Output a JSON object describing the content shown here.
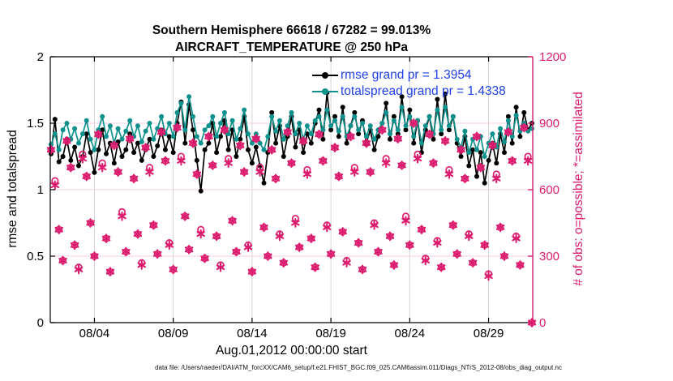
{
  "title": {
    "line1": "Southern Hemisphere 66618 / 67282 = 99.013%",
    "line2": "AIRCRAFT_TEMPERATURE @ 250 hPa"
  },
  "legend": [
    {
      "label": "rmse grand pr = 1.3954",
      "color": "#000000"
    },
    {
      "label": "totalspread grand pr = 1.4338",
      "color": "#0d918c"
    }
  ],
  "legend_text_color": "#1f3fe8",
  "footer": {
    "data_file": "data file: /Users/raeder/DAI/ATM_forcXX/CAM6_setup/f.e21.FHIST_BGC.f09_025.CAM6assim.011/Diags_NTrS_2012-08/obs_diag_output.nc"
  },
  "chart_data": {
    "type": "line",
    "title": "Southern Hemisphere 66618 / 67282 = 99.013% | AIRCRAFT_TEMPERATURE @ 250 hPa",
    "x_label": "Aug.01,2012 00:00:00 start",
    "grid": true,
    "x_range_days": [
      0.2,
      30.8
    ],
    "x_ticks": {
      "days": [
        3,
        8,
        13,
        18,
        23,
        28
      ],
      "labels": [
        "08/04",
        "08/09",
        "08/14",
        "08/19",
        "08/24",
        "08/29"
      ]
    },
    "left_axis": {
      "label": "rmse and totalspread",
      "range": [
        0,
        2
      ],
      "ticks": [
        0,
        0.5,
        1,
        1.5,
        2
      ],
      "tick_labels": [
        "0",
        "0.5",
        "1",
        "1.5",
        "2"
      ],
      "color": "#000000"
    },
    "right_axis": {
      "label": "# of obs: o=possible; *=assimilated",
      "range": [
        0,
        1200
      ],
      "ticks": [
        0,
        300,
        600,
        900,
        1200
      ],
      "tick_labels": [
        "0",
        "300",
        "600",
        "900",
        "1200"
      ],
      "color": "#dc1c6e"
    },
    "grid_color_vertical": "#d4d4d4",
    "grid_color_horizontal": "#f6cfe0",
    "t_start_days": 0.25,
    "t_step_days": 0.25,
    "n_points": 123,
    "series": [
      {
        "name": "rmse",
        "axis": "left",
        "color": "#000000",
        "marker": "dot",
        "grand_pr": 1.3954,
        "values": [
          1.27,
          1.53,
          1.21,
          1.25,
          1.38,
          1.22,
          1.32,
          1.18,
          1.25,
          1.42,
          1.28,
          1.13,
          1.3,
          1.45,
          1.27,
          1.35,
          1.2,
          1.36,
          1.25,
          1.3,
          1.42,
          1.28,
          1.35,
          1.22,
          1.3,
          1.38,
          1.25,
          1.33,
          1.45,
          1.3,
          1.4,
          1.28,
          1.5,
          1.66,
          1.35,
          1.64,
          1.45,
          1.22,
          0.99,
          1.3,
          1.35,
          1.5,
          1.28,
          1.4,
          1.52,
          1.3,
          1.45,
          1.25,
          1.38,
          1.55,
          1.3,
          1.2,
          1.32,
          1.18,
          1.05,
          1.28,
          1.58,
          1.35,
          1.48,
          1.25,
          1.4,
          1.55,
          1.32,
          1.45,
          1.28,
          1.42,
          1.35,
          1.5,
          1.6,
          1.38,
          1.73,
          1.45,
          1.55,
          1.4,
          1.62,
          1.35,
          1.48,
          1.58,
          1.42,
          1.52,
          1.35,
          1.45,
          1.3,
          1.4,
          1.5,
          1.65,
          1.38,
          1.55,
          1.42,
          1.7,
          1.45,
          1.6,
          1.35,
          1.52,
          1.28,
          1.45,
          1.55,
          1.38,
          1.68,
          1.42,
          1.72,
          1.45,
          1.55,
          1.35,
          1.25,
          1.4,
          1.18,
          1.3,
          1.1,
          1.28,
          1.05,
          1.22,
          1.35,
          1.2,
          1.42,
          1.28,
          1.55,
          1.35,
          1.62,
          1.4,
          1.58,
          1.45,
          1.5
        ]
      },
      {
        "name": "totalspread",
        "axis": "left",
        "color": "#0d918c",
        "marker": "dot",
        "grand_pr": 1.4338,
        "values": [
          1.34,
          1.42,
          1.3,
          1.45,
          1.5,
          1.38,
          1.46,
          1.35,
          1.42,
          1.52,
          1.38,
          1.3,
          1.45,
          1.55,
          1.4,
          1.48,
          1.35,
          1.46,
          1.38,
          1.44,
          1.52,
          1.4,
          1.48,
          1.36,
          1.44,
          1.5,
          1.38,
          1.46,
          1.55,
          1.42,
          1.5,
          1.4,
          1.58,
          1.65,
          1.45,
          1.7,
          1.55,
          1.4,
          1.35,
          1.45,
          1.48,
          1.55,
          1.4,
          1.5,
          1.58,
          1.42,
          1.52,
          1.38,
          1.46,
          1.6,
          1.42,
          1.35,
          1.42,
          1.35,
          1.3,
          1.4,
          1.55,
          1.44,
          1.52,
          1.38,
          1.48,
          1.58,
          1.42,
          1.5,
          1.38,
          1.48,
          1.42,
          1.52,
          1.55,
          1.45,
          1.6,
          1.48,
          1.52,
          1.44,
          1.55,
          1.4,
          1.48,
          1.55,
          1.45,
          1.5,
          1.4,
          1.48,
          1.38,
          1.45,
          1.5,
          1.58,
          1.42,
          1.52,
          1.45,
          1.62,
          1.48,
          1.55,
          1.4,
          1.52,
          1.35,
          1.48,
          1.55,
          1.42,
          1.6,
          1.45,
          1.62,
          1.48,
          1.55,
          1.38,
          1.32,
          1.44,
          1.28,
          1.38,
          1.3,
          1.4,
          1.25,
          1.35,
          1.42,
          1.32,
          1.46,
          1.36,
          1.52,
          1.4,
          1.56,
          1.44,
          1.5,
          1.44,
          1.46
        ]
      },
      {
        "name": "possible",
        "axis": "right",
        "color": "#dc1c6e",
        "marker": "o",
        "values": [
          780,
          640,
          420,
          280,
          820,
          700,
          350,
          250,
          760,
          660,
          450,
          300,
          850,
          720,
          380,
          230,
          800,
          680,
          500,
          320,
          830,
          650,
          400,
          270,
          790,
          700,
          440,
          310,
          860,
          730,
          360,
          240,
          880,
          750,
          480,
          330,
          810,
          670,
          420,
          290,
          840,
          710,
          390,
          260,
          870,
          740,
          460,
          320,
          800,
          680,
          350,
          230,
          830,
          700,
          430,
          300,
          780,
          650,
          400,
          270,
          860,
          720,
          470,
          340,
          820,
          690,
          380,
          250,
          850,
          730,
          440,
          310,
          790,
          660,
          410,
          280,
          840,
          700,
          360,
          240,
          810,
          680,
          450,
          320,
          870,
          740,
          390,
          260,
          830,
          710,
          480,
          350,
          900,
          760,
          420,
          290,
          850,
          720,
          370,
          250,
          820,
          690,
          440,
          310,
          780,
          650,
          400,
          270,
          840,
          700,
          350,
          220,
          800,
          670,
          430,
          300,
          860,
          730,
          390,
          260,
          880,
          750,
          0
        ]
      },
      {
        "name": "assimilated",
        "axis": "right",
        "color": "#dc1c6e",
        "marker": "*",
        "values": [
          780,
          620,
          420,
          280,
          820,
          700,
          350,
          240,
          740,
          660,
          450,
          300,
          850,
          700,
          380,
          230,
          800,
          680,
          480,
          320,
          830,
          650,
          400,
          260,
          790,
          680,
          440,
          310,
          860,
          730,
          350,
          240,
          880,
          730,
          480,
          330,
          810,
          670,
          400,
          290,
          840,
          710,
          390,
          250,
          870,
          720,
          460,
          320,
          800,
          680,
          340,
          230,
          830,
          680,
          430,
          300,
          780,
          650,
          390,
          270,
          860,
          720,
          450,
          340,
          820,
          670,
          380,
          250,
          850,
          730,
          430,
          310,
          790,
          660,
          410,
          270,
          840,
          680,
          360,
          240,
          810,
          680,
          440,
          320,
          870,
          720,
          390,
          260,
          830,
          710,
          460,
          350,
          900,
          740,
          420,
          280,
          850,
          720,
          360,
          250,
          820,
          670,
          440,
          310,
          780,
          650,
          390,
          270,
          840,
          700,
          350,
          210,
          800,
          650,
          430,
          300,
          860,
          730,
          380,
          260,
          880,
          730,
          0
        ]
      }
    ]
  }
}
